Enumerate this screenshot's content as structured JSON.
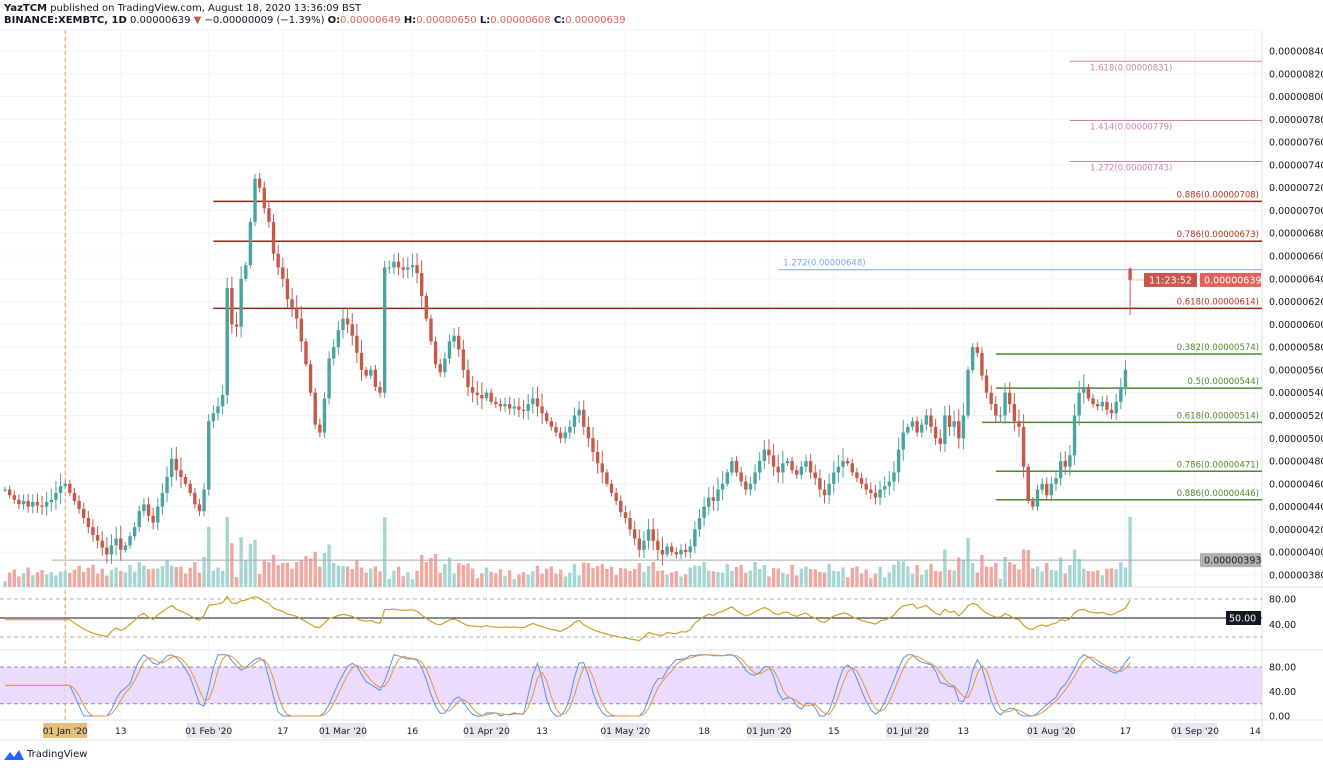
{
  "header": {
    "author": "YazTCM",
    "published": "published on TradingView.com, August 18, 2020 13:36:09 BST",
    "symbol": "BINANCE:XEMBTC, 1D",
    "last": "0.00000639",
    "change_arrow": "▼",
    "change": "−0.00000009 (−1.39%)",
    "o_label": "O:",
    "o": "0.00000649",
    "h_label": "H:",
    "h": "0.00000650",
    "l_label": "L:",
    "l": "0.00000608",
    "c_label": "C:",
    "c": "0.00000639"
  },
  "branding": {
    "name": "TradingView"
  },
  "colors": {
    "up": "#4ba3a0",
    "down": "#c65a4a",
    "vol_up": "#a6d6d2",
    "vol_down": "#f1a8a0",
    "rsi": "#c9a227",
    "stoch_k": "#5b8ff0",
    "stoch_d": "#e0993c",
    "fib_red": "#8b2a10",
    "fib_pink": "#c48aa6",
    "fib_green": "#4f8a2c",
    "fib_blue": "#7aa6e6",
    "stoch_band": "#e6d2fb"
  },
  "chart_data": {
    "type": "candlestick",
    "symbol": "BINANCE:XEMBTC",
    "interval": "1D",
    "first_date": "2019-12-19",
    "closes_satoshi": [
      455,
      450,
      446,
      442,
      445,
      440,
      444,
      441,
      440,
      444,
      446,
      452,
      458,
      460,
      452,
      445,
      438,
      430,
      422,
      415,
      410,
      404,
      398,
      406,
      412,
      402,
      406,
      414,
      422,
      436,
      442,
      432,
      426,
      440,
      452,
      466,
      482,
      472,
      466,
      460,
      452,
      442,
      436,
      455,
      515,
      522,
      528,
      538,
      632,
      600,
      598,
      640,
      652,
      690,
      728,
      720,
      702,
      690,
      662,
      650,
      640,
      622,
      615,
      605,
      585,
      565,
      540,
      512,
      505,
      535,
      570,
      580,
      595,
      605,
      600,
      590,
      575,
      560,
      555,
      560,
      545,
      540,
      650,
      650,
      655,
      650,
      648,
      650,
      652,
      645,
      625,
      605,
      585,
      565,
      558,
      570,
      585,
      590,
      578,
      560,
      545,
      540,
      538,
      535,
      540,
      532,
      530,
      528,
      530,
      526,
      528,
      525,
      524,
      530,
      535,
      528,
      522,
      515,
      510,
      505,
      500,
      505,
      510,
      520,
      525,
      510,
      500,
      488,
      478,
      470,
      460,
      452,
      445,
      435,
      430,
      420,
      412,
      402,
      410,
      420,
      410,
      402,
      398,
      405,
      400,
      398,
      402,
      400,
      405,
      420,
      430,
      440,
      448,
      445,
      455,
      460,
      470,
      480,
      470,
      462,
      455,
      460,
      470,
      480,
      490,
      485,
      475,
      470,
      478,
      480,
      472,
      468,
      475,
      480,
      470,
      465,
      455,
      450,
      460,
      470,
      475,
      480,
      478,
      470,
      465,
      460,
      455,
      452,
      448,
      455,
      458,
      462,
      470,
      490,
      505,
      510,
      515,
      505,
      512,
      520,
      510,
      500,
      495,
      520,
      510,
      515,
      500,
      520,
      560,
      580,
      575,
      555,
      540,
      530,
      520,
      520,
      540,
      530,
      515,
      510,
      475,
      445,
      440,
      455,
      460,
      450,
      460,
      465,
      480,
      475,
      485,
      520,
      540,
      545,
      535,
      530,
      528,
      532,
      525,
      522,
      532,
      545,
      560,
      639
    ],
    "last_candle": {
      "open": 6.49e-06,
      "high": 6.5e-06,
      "low": 6.08e-06,
      "close": 6.39e-06
    },
    "price_axis": {
      "min": 3.7e-06,
      "max": 8.5e-06,
      "ticks": [
        "0.00000840",
        "0.00000820",
        "0.00000800",
        "0.00000780",
        "0.00000760",
        "0.00000740",
        "0.00000720",
        "0.00000700",
        "0.00000680",
        "0.00000660",
        "0.00000640",
        "0.00000620",
        "0.00000600",
        "0.00000580",
        "0.00000560",
        "0.00000540",
        "0.00000520",
        "0.00000500",
        "0.00000480",
        "0.00000460",
        "0.00000440",
        "0.00000420",
        "0.00000400",
        "0.00000380"
      ]
    },
    "current_price_label": "0.00000639",
    "countdown": "11:23:52",
    "reference_line": {
      "price": 393,
      "label": "0.00000393"
    },
    "time_axis": [
      {
        "date": "2020-01-01",
        "label": "01 Jan '20",
        "highlight": true
      },
      {
        "date": "2020-01-13",
        "label": "13"
      },
      {
        "date": "2020-02-01",
        "label": "01 Feb '20"
      },
      {
        "date": "2020-02-17",
        "label": "17"
      },
      {
        "date": "2020-03-01",
        "label": "01 Mar '20"
      },
      {
        "date": "2020-03-16",
        "label": "16"
      },
      {
        "date": "2020-04-01",
        "label": "01 Apr '20"
      },
      {
        "date": "2020-04-13",
        "label": "13"
      },
      {
        "date": "2020-05-01",
        "label": "01 May '20"
      },
      {
        "date": "2020-05-18",
        "label": "18"
      },
      {
        "date": "2020-06-01",
        "label": "01 Jun '20"
      },
      {
        "date": "2020-06-15",
        "label": "15"
      },
      {
        "date": "2020-07-01",
        "label": "01 Jul '20"
      },
      {
        "date": "2020-07-13",
        "label": "13"
      },
      {
        "date": "2020-08-01",
        "label": "01 Aug '20"
      },
      {
        "date": "2020-08-17",
        "label": "17"
      },
      {
        "date": "2020-09-01",
        "label": "01 Sep '20"
      },
      {
        "date": "2020-09-14",
        "label": "14"
      }
    ],
    "marker_date": "2020-01-01",
    "fib_levels": [
      {
        "label": "1.618(0.00000831)",
        "price": 831,
        "group": "pink",
        "from": "2020-08-05"
      },
      {
        "label": "1.414(0.00000779)",
        "price": 779,
        "group": "pink",
        "from": "2020-08-05"
      },
      {
        "label": "1.272(0.00000743)",
        "price": 743,
        "group": "pink",
        "from": "2020-08-05"
      },
      {
        "label": "0.886(0.00000708)",
        "price": 708,
        "group": "red",
        "from": "2020-02-02"
      },
      {
        "label": "0.786(0.00000673)",
        "price": 673,
        "group": "red",
        "from": "2020-02-02"
      },
      {
        "label": "1.272(0.00000648)",
        "price": 648,
        "group": "blue",
        "from": "2020-06-03",
        "label_left": true
      },
      {
        "label": "0.618(0.00000614)",
        "price": 614,
        "group": "red",
        "from": "2020-02-02"
      },
      {
        "label": "0.382(0.00000574)",
        "price": 574,
        "group": "green",
        "from": "2020-07-20"
      },
      {
        "label": "0.5(0.00000544)",
        "price": 544,
        "group": "green",
        "from": "2020-07-20"
      },
      {
        "label": "0.618(0.00000514)",
        "price": 514,
        "group": "green",
        "from": "2020-07-17"
      },
      {
        "label": "0.786(0.00000471)",
        "price": 471,
        "group": "green",
        "from": "2020-07-20"
      },
      {
        "label": "0.886(0.00000446)",
        "price": 446,
        "group": "green",
        "from": "2020-07-20"
      }
    ],
    "rsi": {
      "period": 14,
      "levels": [
        80,
        50,
        20
      ],
      "ticks": [
        "80.00",
        "40.00"
      ],
      "highlight_label": "50.00"
    },
    "stoch_rsi": {
      "levels": [
        80,
        20
      ],
      "ticks": [
        "80.00",
        "40.00",
        "0.00"
      ]
    }
  }
}
